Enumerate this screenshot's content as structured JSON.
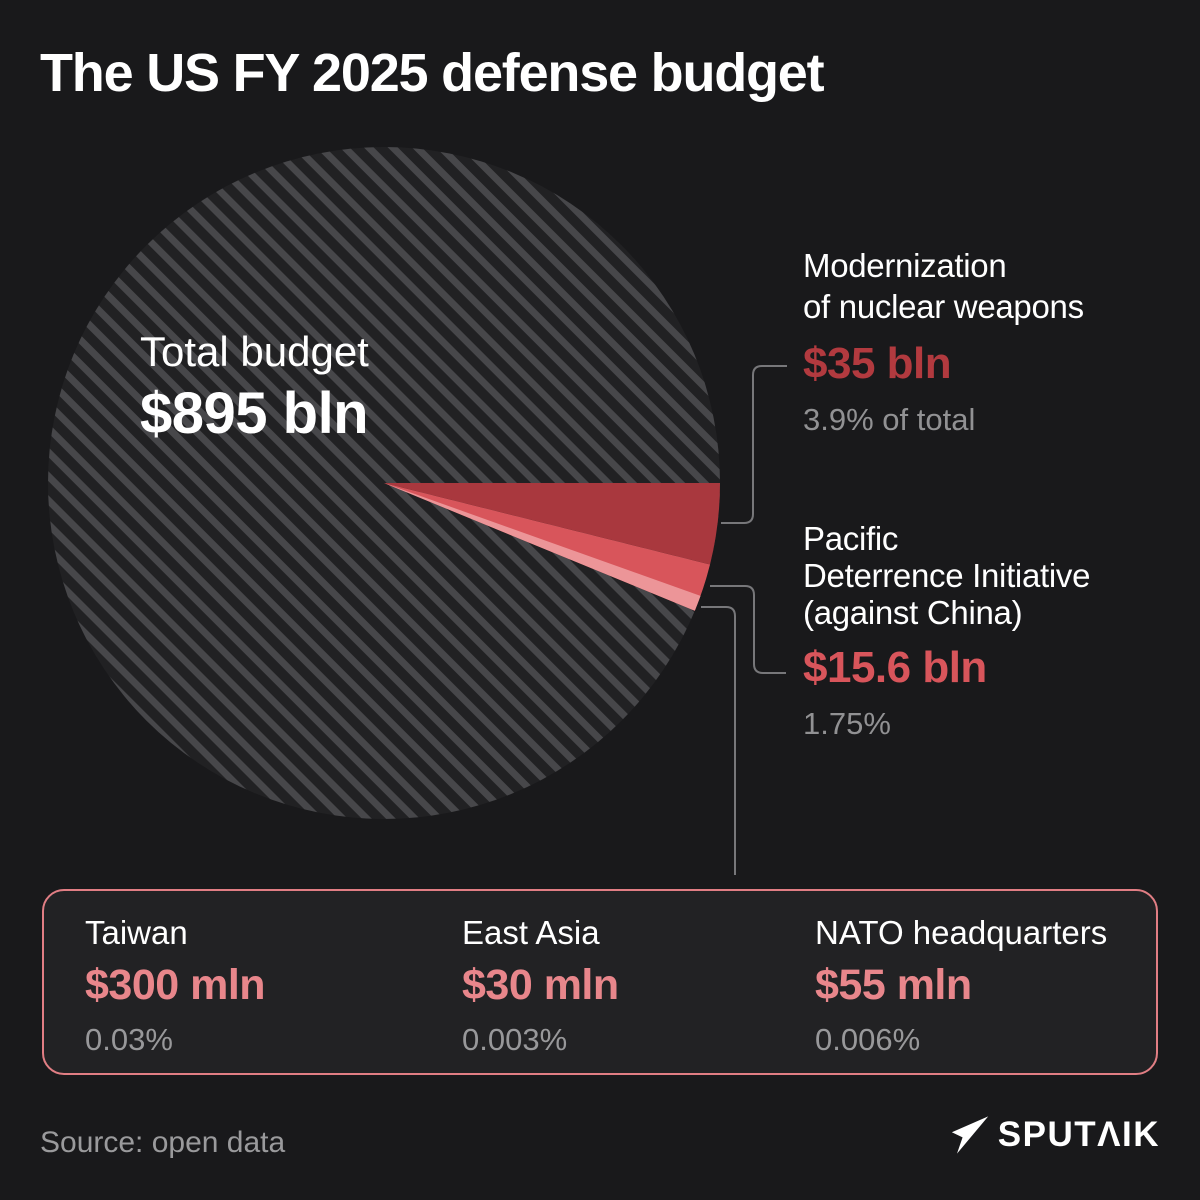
{
  "title": "The US FY 2025 defense budget",
  "chart_data": {
    "type": "pie",
    "title": "The US FY 2025 defense budget",
    "total_label": "Total budget",
    "total_value": "$895 bln",
    "legend_position": "right-callouts",
    "slices": [
      {
        "label": "Rest of total budget",
        "value_text": "$895 bln",
        "pct": 94.311,
        "style": "dark-diagonal-stripes"
      },
      {
        "label": "Modernization of nuclear weapons",
        "value_text": "$35 bln",
        "pct": 3.9,
        "pct_text": "3.9% of total",
        "color": "#a9383e"
      },
      {
        "label": "Pacific Deterrence Initiative (against China)",
        "value_text": "$15.6 bln",
        "pct": 1.75,
        "pct_text": "1.75%",
        "color": "#d8555b"
      },
      {
        "label": "Taiwan",
        "value_text": "$300 mln",
        "pct": 0.03,
        "pct_text": "0.03%",
        "color": "#ec9598"
      },
      {
        "label": "East Asia",
        "value_text": "$30 mln",
        "pct": 0.003,
        "pct_text": "0.003%",
        "color": "#ec9598"
      },
      {
        "label": "NATO headquarters",
        "value_text": "$55 mln",
        "pct": 0.006,
        "pct_text": "0.006%",
        "color": "#ec9598"
      }
    ]
  },
  "pie": {
    "center_label": "Total budget",
    "center_value": "$895 bln"
  },
  "callouts": [
    {
      "name_lines": [
        "Modernization",
        "of nuclear weapons"
      ],
      "value": "$35 bln",
      "pct": "3.9% of total",
      "value_color": "#b23a3f"
    },
    {
      "name_lines": [
        "Pacific",
        "Deterrence Initiative",
        "(against China)"
      ],
      "value": "$15.6 bln",
      "pct": "1.75%",
      "value_color": "#d8555b"
    }
  ],
  "micro_box": {
    "border_color": "#e17e84",
    "value_color": "#e8868b",
    "items": [
      {
        "label": "Taiwan",
        "value": "$300 mln",
        "pct": "0.03%"
      },
      {
        "label": "East Asia",
        "value": "$30 mln",
        "pct": "0.003%"
      },
      {
        "label": "NATO headquarters",
        "value": "$55 mln",
        "pct": "0.006%"
      }
    ]
  },
  "footer": {
    "source": "Source: open data",
    "logo_text": "SPUTΛIK"
  },
  "colors": {
    "background": "#19191b",
    "stripe_light": "#47474a",
    "stripe_dark": "#212123",
    "wedge_nuclear": "#a9383e",
    "wedge_pacific": "#d8555b",
    "wedge_micro": "#ec9598",
    "callout_line": "#77777a",
    "muted_text": "#98989a"
  }
}
